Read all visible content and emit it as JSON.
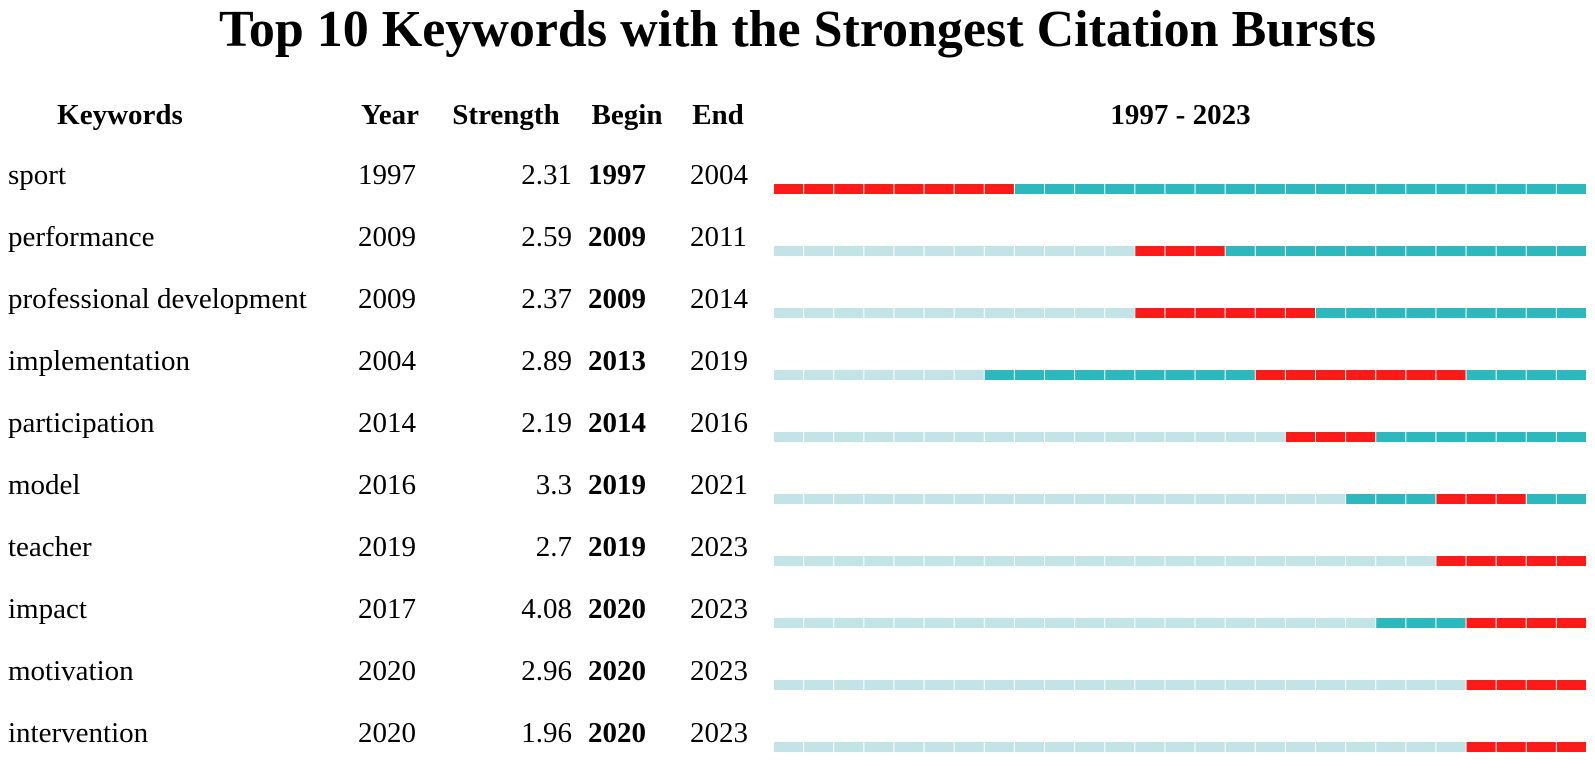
{
  "title": "Top 10 Keywords with the Strongest Citation Bursts",
  "headers": {
    "keywords": "Keywords",
    "year": "Year",
    "strength": "Strength",
    "begin": "Begin",
    "end": "End",
    "range": "1997 - 2023"
  },
  "colors": {
    "burst": "#ff1a1a",
    "active": "#2cb8bd",
    "inactive": "#c2e4e6"
  },
  "chart_data": {
    "type": "table",
    "range_start": 1997,
    "range_end": 2023,
    "rows": [
      {
        "keyword": "sport",
        "year": "1997",
        "strength": "2.31",
        "begin": "1997",
        "end": "2004"
      },
      {
        "keyword": "performance",
        "year": "2009",
        "strength": "2.59",
        "begin": "2009",
        "end": "2011"
      },
      {
        "keyword": "professional development",
        "year": "2009",
        "strength": "2.37",
        "begin": "2009",
        "end": "2014"
      },
      {
        "keyword": "implementation",
        "year": "2004",
        "strength": "2.89",
        "begin": "2013",
        "end": "2019"
      },
      {
        "keyword": "participation",
        "year": "2014",
        "strength": "2.19",
        "begin": "2014",
        "end": "2016"
      },
      {
        "keyword": "model",
        "year": "2016",
        "strength": "3.3",
        "begin": "2019",
        "end": "2021"
      },
      {
        "keyword": "teacher",
        "year": "2019",
        "strength": "2.7",
        "begin": "2019",
        "end": "2023"
      },
      {
        "keyword": "impact",
        "year": "2017",
        "strength": "4.08",
        "begin": "2020",
        "end": "2023"
      },
      {
        "keyword": "motivation",
        "year": "2020",
        "strength": "2.96",
        "begin": "2020",
        "end": "2023"
      },
      {
        "keyword": "intervention",
        "year": "2020",
        "strength": "1.96",
        "begin": "2020",
        "end": "2023"
      }
    ]
  }
}
